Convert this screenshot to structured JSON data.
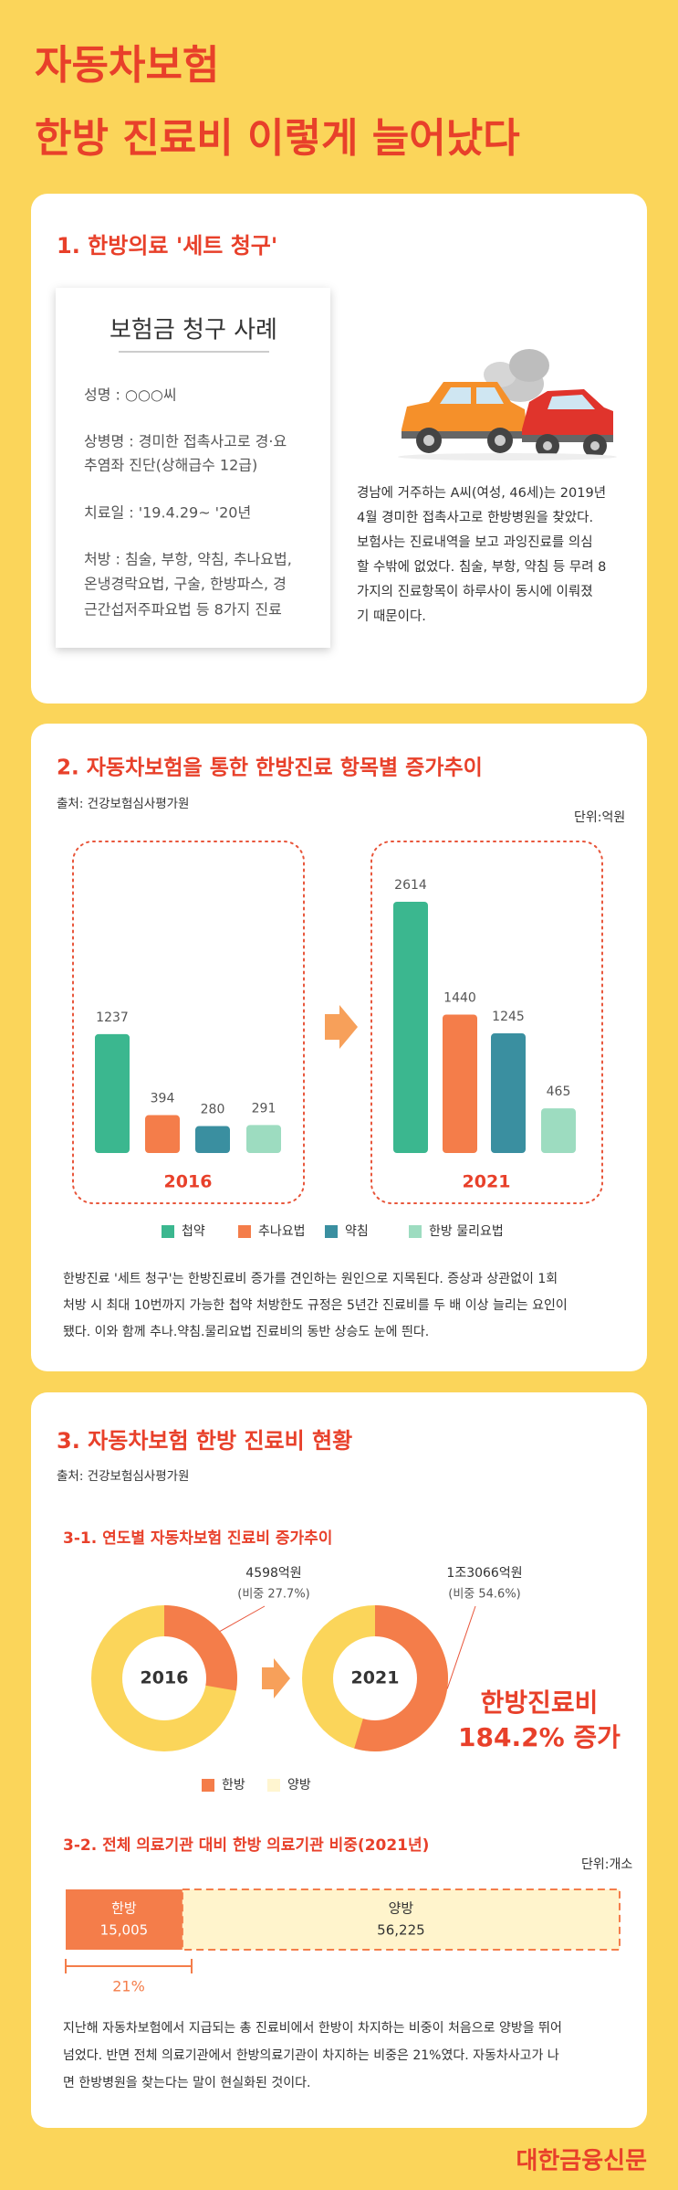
{
  "title": [
    "자동차보험",
    "한방 진료비 이렇게 늘어났다"
  ],
  "section1": {
    "heading": "1. 한방의료 '세트 청구'",
    "paper": {
      "title": "보험금 청구 사례",
      "lines": [
        "성명 : ○○○씨",
        "상병명 : 경미한 접촉사고로 경·요",
        "추염좌 진단(상해급수 12급)",
        "치료일 : '19.4.29~ '20년",
        "처방 : 침술, 부항, 약침, 추나요법,",
        "온냉경락요법, 구술, 한방파스, 경",
        "근간섭저주파요법 등 8가지 진료"
      ]
    },
    "text": [
      "경남에 거주하는 A씨(여성, 46세)는 2019년",
      "4월 경미한 접촉사고로 한방병원을 찾았다.",
      "보험사는 진료내역을 보고 과잉진료를 의심",
      "할 수밖에 없었다. 침술, 부항, 약침 등 무려 8",
      "가지의 진료항목이 하루사이 동시에 이뤄졌",
      "기 때문이다."
    ]
  },
  "section2": {
    "heading": "2. 자동차보험을 통한 한방진료 항목별 증가추이",
    "source": "출처: 건강보험심사평가원",
    "chart": {
      "type": "bar",
      "unit": "단위:억원",
      "categories": [
        "첩약",
        "추나요법",
        "약침",
        "한방 물리요법"
      ],
      "colors": [
        "#3bb78f",
        "#f47d4a",
        "#3a8fa0",
        "#9ddcc0"
      ],
      "panels": [
        {
          "year": "2016",
          "values": [
            1237,
            394,
            280,
            291
          ]
        },
        {
          "year": "2021",
          "values": [
            2614,
            1440,
            1245,
            465
          ]
        }
      ]
    },
    "text": [
      "한방진료 '세트 청구'는 한방진료비 증가를 견인하는 원인으로 지목된다. 증상과 상관없이 1회",
      "처방 시 최대 10번까지 가능한 첩약 처방한도 규정은 5년간 진료비를 두 배 이상 늘리는 요인이",
      "됐다. 이와 함께 추나.약침.물리요법 진료비의 동반 상승도 눈에 띈다."
    ]
  },
  "section3": {
    "heading": "3. 자동차보험 한방 진료비 현황",
    "source": "출처: 건강보험심사평가원",
    "sub1": {
      "heading": "3-1. 연도별 자동차보험 진료비 증가추이",
      "chart": {
        "type": "pie",
        "legend": [
          "한방",
          "양방"
        ],
        "colors": [
          "#f47d4a",
          "#fbd55a"
        ],
        "pies": [
          {
            "year": "2016",
            "amount": "4598억원",
            "share": 27.7,
            "share_label": "(비중 27.7%)"
          },
          {
            "year": "2021",
            "amount": "1조3066억원",
            "share": 54.6,
            "share_label": "(비중 54.6%)"
          }
        ]
      },
      "callout": [
        "한방진료비",
        "184.2% 증가"
      ]
    },
    "sub2": {
      "heading": "3-2. 전체 의료기관 대비 한방 의료기관 비중(2021년)",
      "unit": "단위:개소",
      "chart": {
        "type": "bar",
        "categories": [
          "한방",
          "양방"
        ],
        "values": [
          15005,
          56225
        ],
        "value_labels": [
          "15,005",
          "56,225"
        ],
        "colors": [
          "#f47d4a",
          "#fff4cc"
        ]
      },
      "share_label": "21%"
    },
    "text": [
      "지난해 자동차보험에서 지급되는 총 진료비에서 한방이 차지하는 비중이 처음으로 양방을 뛰어",
      "넘었다. 반면 전체 의료기관에서 한방의료기관이 차지하는 비중은 21%였다. 자동차사고가 나",
      "면 한방병원을 찾는다는 말이 현실화된 것이다."
    ]
  },
  "footer": "대한금융신문"
}
